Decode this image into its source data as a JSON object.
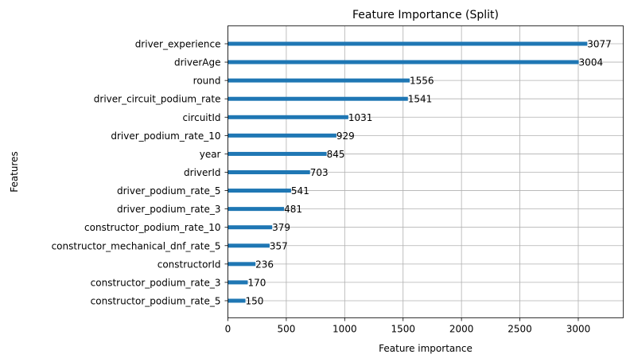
{
  "chart_data": {
    "type": "bar",
    "orientation": "horizontal",
    "title": "Feature Importance (Split)",
    "xlabel": "Feature importance",
    "ylabel": "Features",
    "xlim": [
      0,
      3385
    ],
    "xticks": [
      0,
      500,
      1000,
      1500,
      2000,
      2500,
      3000
    ],
    "grid": true,
    "bar_color": "#1f77b4",
    "categories": [
      "driver_experience",
      "driverAge",
      "round",
      "driver_circuit_podium_rate",
      "circuitId",
      "driver_podium_rate_10",
      "year",
      "driverId",
      "driver_podium_rate_5",
      "driver_podium_rate_3",
      "constructor_podium_rate_10",
      "constructor_mechanical_dnf_rate_5",
      "constructorId",
      "constructor_podium_rate_3",
      "constructor_podium_rate_5"
    ],
    "values": [
      3077,
      3004,
      1556,
      1541,
      1031,
      929,
      845,
      703,
      541,
      481,
      379,
      357,
      236,
      170,
      150
    ]
  }
}
